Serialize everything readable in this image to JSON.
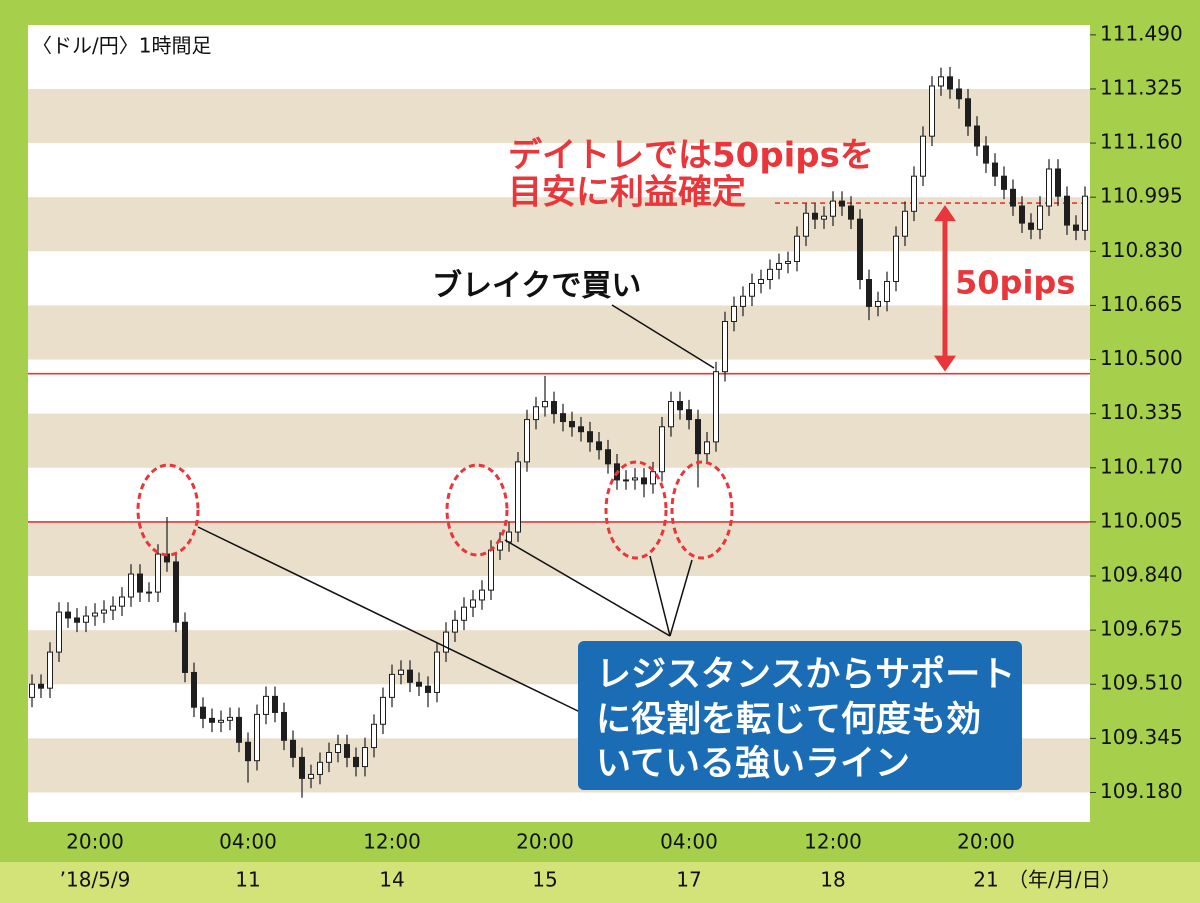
{
  "chart_data": {
    "type": "candlestick",
    "title": "〈ドル/円〉1時間足",
    "ylim": [
      109.09,
      111.52
    ],
    "yticks": [
      {
        "value": 111.49,
        "label": "111.490"
      },
      111.325,
      {
        "value": 111.16,
        "label": "111.160"
      },
      110.995,
      {
        "value": 110.83,
        "label": "110.830"
      },
      110.665,
      {
        "value": 110.5,
        "label": "110.500"
      },
      110.335,
      {
        "value": 110.17,
        "label": "110.170"
      },
      110.005,
      {
        "value": 109.84,
        "label": "109.840"
      },
      109.675,
      {
        "value": 109.51,
        "label": "109.510"
      },
      109.345,
      {
        "value": 109.18,
        "label": "109.180"
      }
    ],
    "categories": [
      null,
      null,
      null,
      null,
      null,
      null,
      null,
      "20:00",
      null,
      null,
      null,
      null,
      null,
      null,
      null,
      null,
      null,
      null,
      null,
      null,
      null,
      null,
      null,
      null,
      "04:00",
      null,
      null,
      null,
      null,
      null,
      null,
      null,
      null,
      null,
      null,
      null,
      null,
      null,
      null,
      null,
      "12:00",
      null,
      null,
      null,
      null,
      null,
      null,
      null,
      null,
      null,
      null,
      null,
      null,
      null,
      null,
      null,
      null,
      "20:00",
      null,
      null,
      null,
      null,
      null,
      null,
      null,
      null,
      null,
      null,
      null,
      null,
      null,
      null,
      null,
      "04:00",
      null,
      null,
      null,
      null,
      null,
      null,
      null,
      null,
      null,
      null,
      null,
      null,
      null,
      null,
      null,
      "12:00",
      null,
      null,
      null,
      null,
      null,
      null,
      null,
      null,
      null,
      null,
      null,
      null,
      null,
      null,
      null,
      null,
      "20:00",
      null,
      null,
      null,
      null,
      null,
      null,
      null,
      null,
      null,
      null,
      null
    ],
    "date_labels": [
      null,
      null,
      null,
      null,
      null,
      null,
      null,
      "’18/5/9",
      null,
      null,
      null,
      null,
      null,
      null,
      null,
      null,
      null,
      null,
      null,
      null,
      null,
      null,
      null,
      null,
      "11",
      null,
      null,
      null,
      null,
      null,
      null,
      null,
      null,
      null,
      null,
      null,
      null,
      null,
      null,
      null,
      "14",
      null,
      null,
      null,
      null,
      null,
      null,
      null,
      null,
      null,
      null,
      null,
      null,
      null,
      null,
      null,
      null,
      "15",
      null,
      null,
      null,
      null,
      null,
      null,
      null,
      null,
      null,
      null,
      null,
      null,
      null,
      null,
      null,
      "17",
      null,
      null,
      null,
      null,
      null,
      null,
      null,
      null,
      null,
      null,
      null,
      null,
      null,
      null,
      null,
      "18",
      null,
      null,
      null,
      null,
      null,
      null,
      null,
      null,
      null,
      null,
      null,
      null,
      null,
      null,
      null,
      null,
      "21",
      null,
      null,
      null,
      null,
      null,
      null,
      null,
      null,
      null,
      null,
      null
    ],
    "date_unit_label": "（年/月/日）",
    "open": [
      109.47,
      109.51,
      109.498,
      109.608,
      109.73,
      109.712,
      109.699,
      109.718,
      109.727,
      109.736,
      109.748,
      109.776,
      109.846,
      109.791,
      109.791,
      109.907,
      109.883,
      109.699,
      109.546,
      109.44,
      109.406,
      109.394,
      109.4,
      109.409,
      109.333,
      109.277,
      109.418,
      109.473,
      109.424,
      109.339,
      109.287,
      109.223,
      109.235,
      109.272,
      109.302,
      109.326,
      109.287,
      109.259,
      109.317,
      109.388,
      109.47,
      109.54,
      109.553,
      109.516,
      109.504,
      109.485,
      109.608,
      109.669,
      109.705,
      109.745,
      109.767,
      109.797,
      109.919,
      109.944,
      109.974,
      110.188,
      110.317,
      110.356,
      110.372,
      110.335,
      110.311,
      110.295,
      110.28,
      110.249,
      110.225,
      110.182,
      110.133,
      110.133,
      110.139,
      110.121,
      110.158,
      110.295,
      110.372,
      110.347,
      110.317,
      110.213,
      110.249,
      110.463,
      110.616,
      110.662,
      110.693,
      110.732,
      110.744,
      110.775,
      110.793,
      110.799,
      110.876,
      110.946,
      110.928,
      110.937,
      110.983,
      110.968,
      110.928,
      110.744,
      110.662,
      110.677,
      110.738,
      110.876,
      110.952,
      111.059,
      111.181,
      111.334,
      111.362,
      111.325,
      111.295,
      111.212,
      111.151,
      111.099,
      111.059,
      111.019,
      110.968,
      110.916,
      110.897,
      110.968,
      111.081,
      110.998,
      110.91,
      110.894
    ],
    "high": [
      109.54,
      109.54,
      109.638,
      109.76,
      109.76,
      109.742,
      109.748,
      109.757,
      109.766,
      109.778,
      109.806,
      109.876,
      109.876,
      109.821,
      109.937,
      110.02,
      109.913,
      109.729,
      109.576,
      109.47,
      109.436,
      109.43,
      109.439,
      109.439,
      109.363,
      109.448,
      109.503,
      109.503,
      109.454,
      109.369,
      109.317,
      109.265,
      109.302,
      109.332,
      109.356,
      109.356,
      109.317,
      109.347,
      109.418,
      109.5,
      109.57,
      109.583,
      109.583,
      109.546,
      109.534,
      109.638,
      109.699,
      109.735,
      109.775,
      109.797,
      109.827,
      109.949,
      109.974,
      110.004,
      110.218,
      110.347,
      110.386,
      110.45,
      110.402,
      110.365,
      110.341,
      110.325,
      110.31,
      110.279,
      110.255,
      110.212,
      110.163,
      110.169,
      110.169,
      110.188,
      110.325,
      110.402,
      110.402,
      110.377,
      110.347,
      110.279,
      110.493,
      110.646,
      110.692,
      110.723,
      110.762,
      110.774,
      110.805,
      110.823,
      110.829,
      110.906,
      110.976,
      110.976,
      110.967,
      111.013,
      111.013,
      110.998,
      110.958,
      110.774,
      110.707,
      110.768,
      110.906,
      110.982,
      111.089,
      111.211,
      111.364,
      111.39,
      111.392,
      111.355,
      111.325,
      111.242,
      111.181,
      111.129,
      111.089,
      111.049,
      110.998,
      110.946,
      110.998,
      111.111,
      111.111,
      111.028,
      110.94,
      111.028
    ],
    "low": [
      109.44,
      109.468,
      109.468,
      109.578,
      109.682,
      109.669,
      109.669,
      109.688,
      109.697,
      109.706,
      109.718,
      109.746,
      109.761,
      109.761,
      109.761,
      109.853,
      109.669,
      109.516,
      109.41,
      109.376,
      109.364,
      109.364,
      109.37,
      109.303,
      109.21,
      109.247,
      109.388,
      109.394,
      109.309,
      109.257,
      109.164,
      109.193,
      109.205,
      109.242,
      109.272,
      109.257,
      109.229,
      109.229,
      109.287,
      109.358,
      109.44,
      109.51,
      109.486,
      109.474,
      109.44,
      109.455,
      109.578,
      109.639,
      109.675,
      109.715,
      109.737,
      109.767,
      109.889,
      109.914,
      109.944,
      110.158,
      110.287,
      110.326,
      110.305,
      110.281,
      110.265,
      110.25,
      110.219,
      110.195,
      110.152,
      110.103,
      110.103,
      110.103,
      110.08,
      110.091,
      110.128,
      110.265,
      110.317,
      110.287,
      110.11,
      110.183,
      110.219,
      110.433,
      110.586,
      110.632,
      110.663,
      110.702,
      110.714,
      110.745,
      110.763,
      110.769,
      110.846,
      110.898,
      110.898,
      110.907,
      110.938,
      110.898,
      110.714,
      110.62,
      110.632,
      110.647,
      110.708,
      110.846,
      110.922,
      111.029,
      111.151,
      111.304,
      111.295,
      111.265,
      111.182,
      111.121,
      111.069,
      111.029,
      110.989,
      110.938,
      110.886,
      110.867,
      110.867,
      110.938,
      110.968,
      110.88,
      110.864,
      110.864
    ],
    "close": [
      109.51,
      109.498,
      109.608,
      109.73,
      109.712,
      109.699,
      109.718,
      109.727,
      109.736,
      109.748,
      109.776,
      109.846,
      109.791,
      109.791,
      109.907,
      109.883,
      109.699,
      109.546,
      109.44,
      109.406,
      109.394,
      109.4,
      109.409,
      109.333,
      109.277,
      109.418,
      109.473,
      109.424,
      109.339,
      109.287,
      109.223,
      109.235,
      109.272,
      109.302,
      109.326,
      109.287,
      109.259,
      109.317,
      109.388,
      109.47,
      109.54,
      109.553,
      109.516,
      109.504,
      109.485,
      109.608,
      109.669,
      109.705,
      109.745,
      109.767,
      109.797,
      109.919,
      109.944,
      109.974,
      110.188,
      110.317,
      110.356,
      110.372,
      110.335,
      110.311,
      110.295,
      110.28,
      110.249,
      110.225,
      110.182,
      110.133,
      110.133,
      110.139,
      110.121,
      110.158,
      110.295,
      110.372,
      110.347,
      110.317,
      110.213,
      110.249,
      110.463,
      110.616,
      110.662,
      110.693,
      110.732,
      110.744,
      110.775,
      110.793,
      110.799,
      110.876,
      110.946,
      110.928,
      110.937,
      110.983,
      110.968,
      110.928,
      110.744,
      110.662,
      110.677,
      110.738,
      110.876,
      110.952,
      111.059,
      111.181,
      111.334,
      111.362,
      111.325,
      111.295,
      111.212,
      111.151,
      111.099,
      111.059,
      111.019,
      110.968,
      110.916,
      110.897,
      110.968,
      111.081,
      110.998,
      110.91,
      110.894,
      110.998
    ],
    "candle_color": "#1e1e1e",
    "band_color": "#eadfca",
    "hlines": [
      {
        "value": 110.005,
        "color": "#e8363a"
      },
      {
        "value": 110.457,
        "color": "#e8363a"
      }
    ],
    "target_line": {
      "value": 110.977,
      "color": "#e8363a"
    },
    "arrow": {
      "from": 110.977,
      "to": 110.457,
      "label": "50pips",
      "color": "#e8363a"
    },
    "profit_note": [
      "デイトレでは50pipsを",
      "目安に利益確定"
    ],
    "break_note": "ブレイクで買い",
    "line_note": [
      "レジスタンスからサポート",
      "に役割を転じて何度も効",
      "いている強いライン"
    ]
  }
}
